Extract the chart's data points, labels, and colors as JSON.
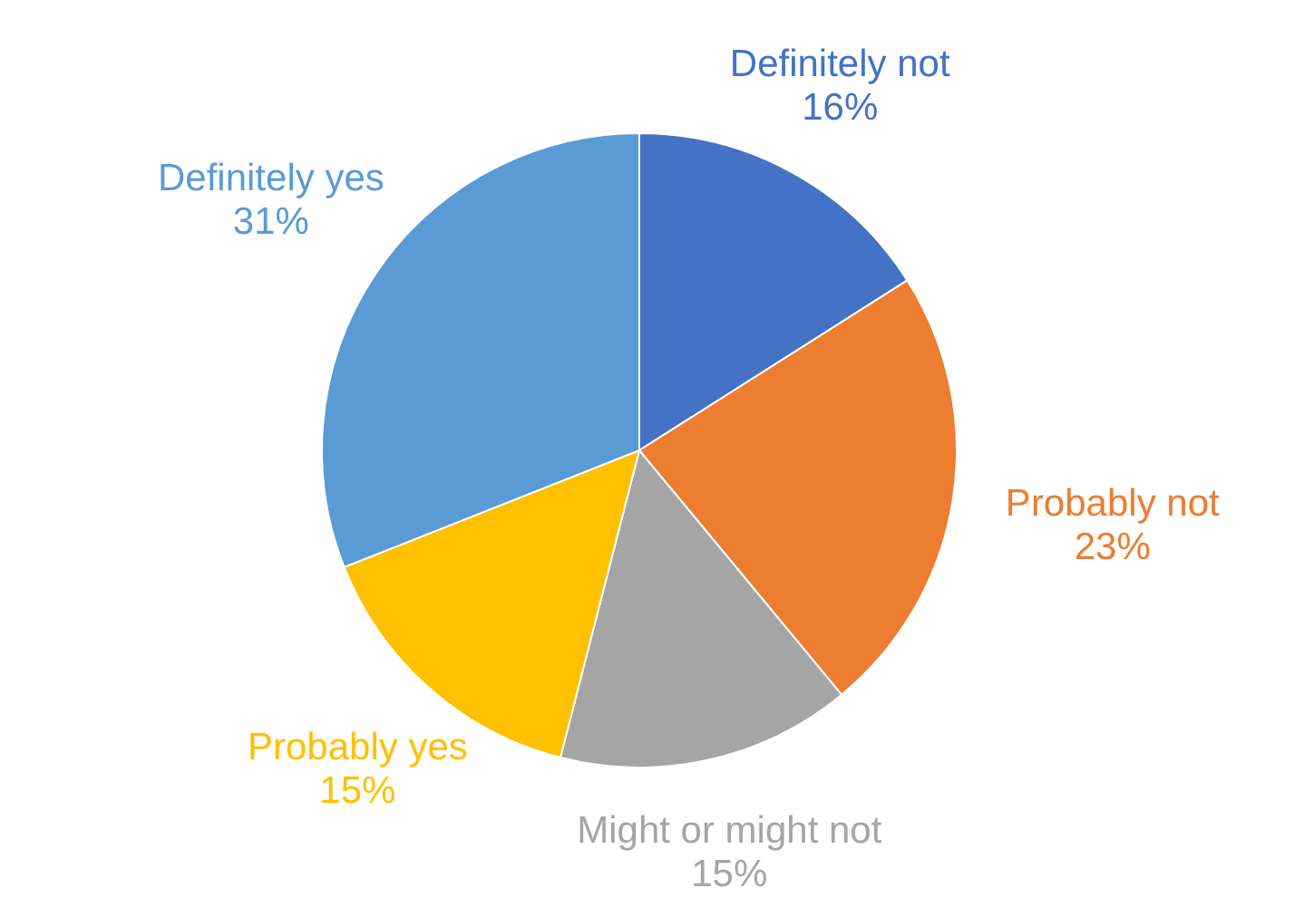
{
  "chart_data": {
    "type": "pie",
    "categories": [
      "Definitely not",
      "Probably not",
      "Might or might not",
      "Probably yes",
      "Definitely yes"
    ],
    "values": [
      16,
      23,
      15,
      15,
      31
    ],
    "colors": [
      "#4472c4",
      "#ed7d31",
      "#a5a5a5",
      "#ffc000",
      "#5b9bd5"
    ],
    "value_labels": [
      "16%",
      "23%",
      "15%",
      "15%",
      "31%"
    ]
  }
}
